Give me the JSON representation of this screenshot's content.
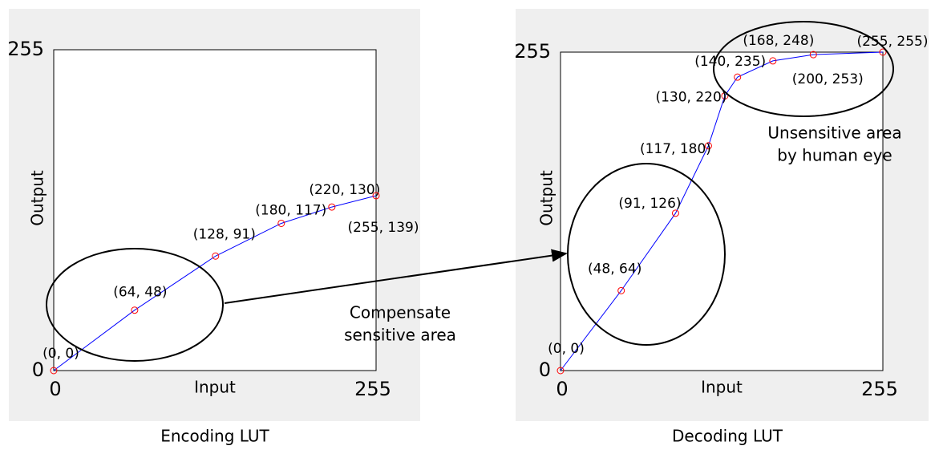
{
  "chart_data": [
    {
      "type": "line",
      "title": "Encoding LUT",
      "x_label": "Input",
      "y_label": "Output",
      "x": [
        0,
        64,
        128,
        180,
        220,
        255
      ],
      "series": [
        {
          "color": "#0000ff",
          "marker_color": "#ff0000",
          "values": [
            0,
            48,
            91,
            117,
            130,
            139
          ],
          "value_labels": [
            "(0, 0)",
            "(64, 48)",
            "(128, 91)",
            "(180, 117)",
            "(220, 130)",
            "(255, 139)"
          ]
        }
      ],
      "xlim": [
        0,
        255
      ],
      "ylim": [
        0,
        255
      ],
      "xticks": [
        0,
        255
      ],
      "yticks": [
        0,
        255
      ],
      "annotation": [
        "Compensate",
        "sensitive area"
      ]
    },
    {
      "type": "line",
      "title": "Decoding LUT",
      "x_label": "Input",
      "y_label": "Output",
      "x": [
        0,
        48,
        91,
        117,
        130,
        140,
        168,
        200,
        255
      ],
      "series": [
        {
          "color": "#0000ff",
          "marker_color": "#ff0000",
          "values": [
            0,
            64,
            126,
            180,
            220,
            235,
            248,
            253,
            255
          ],
          "value_labels": [
            "(0, 0)",
            "(48, 64)",
            "(91, 126)",
            "(117, 180)",
            "(130, 220)",
            "(140, 235)",
            "(168, 248)",
            "(200, 253)",
            "(255, 255)"
          ]
        }
      ],
      "xlim": [
        0,
        255
      ],
      "ylim": [
        0,
        255
      ],
      "xticks": [
        0,
        255
      ],
      "yticks": [
        0,
        255
      ],
      "annotation": [
        "Unsensitive area",
        "by human eye"
      ]
    }
  ]
}
